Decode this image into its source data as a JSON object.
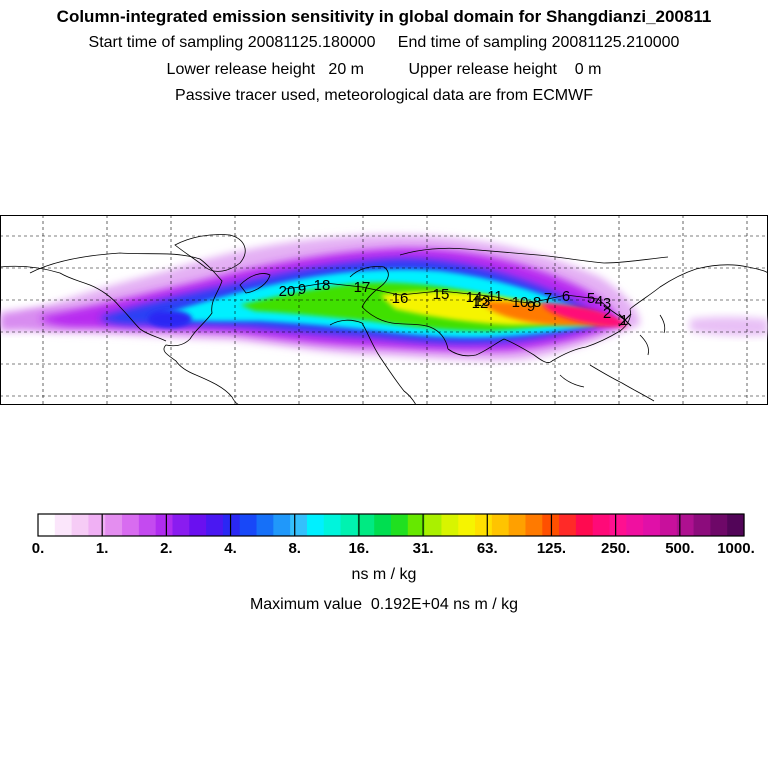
{
  "header": {
    "title": "Column-integrated emission sensitivity in global domain for Shangdianzi_200811",
    "line2": "Start time of sampling 20081125.180000     End time of sampling 20081125.210000",
    "line3": "Lower release height   20 m          Upper release height    0 m",
    "line4": "Passive tracer used, meteorological data are from ECMWF"
  },
  "chart_data": {
    "type": "heatmap",
    "map_region": "global",
    "release_site": "Shangdianzi",
    "colorbar": {
      "tick_labels": [
        "0.",
        "1.",
        "2.",
        "4.",
        "8.",
        "16.",
        "31.",
        "63.",
        "125.",
        "250.",
        "500.",
        "1000."
      ],
      "colors": [
        "#ffffff",
        "#fbe6fb",
        "#f6ccf6",
        "#f0b0f4",
        "#e48ef0",
        "#d86cf0",
        "#c44af0",
        "#b02cf0",
        "#8a1cf0",
        "#6a10f0",
        "#4a18f2",
        "#2a28f4",
        "#1848f8",
        "#1670f8",
        "#2098fa",
        "#34c0fc",
        "#00f0ff",
        "#00f4dc",
        "#00f2b0",
        "#00ea82",
        "#00de50",
        "#20e020",
        "#66e800",
        "#aaf000",
        "#d8f400",
        "#f6f400",
        "#ffe000",
        "#ffc400",
        "#ffa000",
        "#ff7a00",
        "#ff5000",
        "#ff2a28",
        "#ff0a50",
        "#ff0a78",
        "#ff1090",
        "#f010a0",
        "#e010a8",
        "#c8109c",
        "#ae1090",
        "#8c0c7c",
        "#6e0868",
        "#520558"
      ],
      "unit": "ns m / kg"
    },
    "max_value_text": "Maximum value  0.192E+04 ns m / kg",
    "trajectory_labels": [
      "20",
      "9",
      "18",
      "17",
      "16",
      "15",
      "14",
      "13",
      "12",
      "11",
      "10",
      "9",
      "8",
      "7",
      "6",
      "5",
      "4",
      "3",
      "2",
      "1"
    ]
  }
}
